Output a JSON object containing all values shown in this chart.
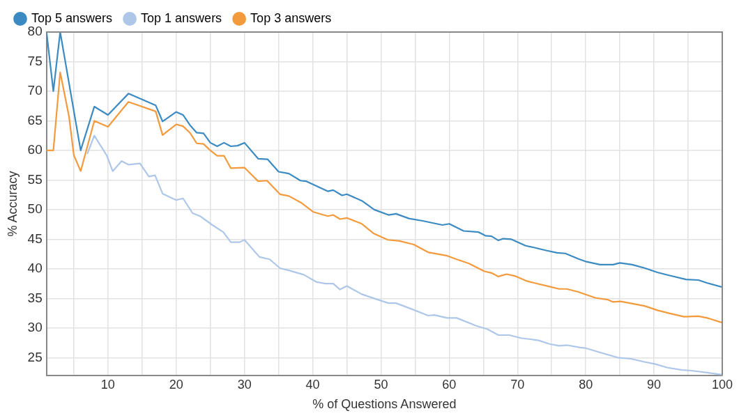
{
  "chart_data": {
    "type": "line",
    "xlabel": "% of Questions Answered",
    "ylabel": "% Accuracy",
    "xlim": [
      1,
      100
    ],
    "ylim": [
      22,
      80
    ],
    "xticks": [
      {
        "value": 5,
        "label": null
      },
      10,
      {
        "value": 15,
        "label": null
      },
      20,
      {
        "value": 25,
        "label": null
      },
      30,
      {
        "value": 35,
        "label": null
      },
      40,
      {
        "value": 45,
        "label": null
      },
      50,
      {
        "value": 55,
        "label": null
      },
      60,
      {
        "value": 65,
        "label": null
      },
      70,
      {
        "value": 75,
        "label": null
      },
      80,
      {
        "value": 85,
        "label": null
      },
      90,
      {
        "value": 95,
        "label": null
      },
      100
    ],
    "yticks": [
      25,
      30,
      35,
      40,
      45,
      50,
      55,
      60,
      65,
      70,
      75,
      80
    ],
    "grid": true,
    "legend": "top left",
    "marker": "none",
    "line_style": "solid",
    "series": [
      {
        "name": "Top 5 answers",
        "color": "#3b8bc2",
        "x": [
          1,
          2,
          3,
          6,
          8,
          10,
          13,
          17,
          18,
          20,
          21,
          22,
          23,
          24,
          25,
          26,
          27,
          28,
          29,
          30,
          32,
          33.4,
          35,
          36.5,
          38.2,
          39,
          42.2,
          43,
          44.3,
          45,
          47.2,
          49,
          51.1,
          52.2,
          54.1,
          56.1,
          59,
          60,
          62.1,
          64.3,
          65.3,
          66.2,
          67.2,
          67.9,
          69.1,
          71.2,
          72.4,
          74.2,
          75.8,
          77,
          78.9,
          80.1,
          82.1,
          84,
          85,
          86.8,
          88.7,
          90.5,
          92.2,
          94.7,
          96.5,
          97.8,
          100
        ],
        "values": [
          80,
          70,
          80,
          60,
          67.4,
          66,
          69.6,
          67.6,
          64.9,
          66.5,
          66,
          64.3,
          63,
          62.9,
          61.3,
          60.7,
          61.3,
          60.7,
          60.8,
          61.3,
          58.6,
          58.5,
          56.4,
          56.1,
          54.9,
          54.8,
          53.1,
          53.3,
          52.4,
          52.6,
          51.5,
          50,
          49.1,
          49.3,
          48.5,
          48.1,
          47.4,
          47.6,
          46.4,
          46.2,
          45.6,
          45.5,
          44.8,
          45.1,
          45,
          43.9,
          43.6,
          43.1,
          42.7,
          42.6,
          41.7,
          41.2,
          40.7,
          40.7,
          41,
          40.7,
          40.1,
          39.4,
          38.9,
          38.2,
          38.1,
          37.6,
          36.9
        ]
      },
      {
        "name": "Top 1 answers",
        "color": "#aec7e8",
        "x": [
          7,
          8,
          9.8,
          10.7,
          12,
          13,
          14.7,
          16,
          16.9,
          18,
          20,
          21,
          22.4,
          23.5,
          25.3,
          26.9,
          28,
          29.3,
          30,
          32.2,
          33.7,
          35.2,
          36.6,
          38.7,
          40.5,
          41.9,
          43,
          44,
          45,
          47.2,
          49,
          51.1,
          52.2,
          54.5,
          56.9,
          57.8,
          59.7,
          61.1,
          63.9,
          65.6,
          67.2,
          68.8,
          70.5,
          71.9,
          73.1,
          74.7,
          76.1,
          77.3,
          79.2,
          80,
          82.3,
          84.7,
          86.6,
          88.5,
          90.2,
          92,
          94.1,
          95.5,
          97.6,
          100
        ],
        "values": [
          59.5,
          62.5,
          59.2,
          56.5,
          58.2,
          57.6,
          57.8,
          55.6,
          55.8,
          52.7,
          51.6,
          51.9,
          49.4,
          48.9,
          47.4,
          46.2,
          44.5,
          44.5,
          44.9,
          42,
          41.6,
          40.1,
          39.7,
          39,
          37.8,
          37.5,
          37.5,
          36.5,
          37.1,
          35.7,
          35,
          34.2,
          34.2,
          33.2,
          32.1,
          32.2,
          31.7,
          31.7,
          30.4,
          29.8,
          28.8,
          28.8,
          28.3,
          28.1,
          27.9,
          27.3,
          27,
          27.1,
          26.7,
          26.6,
          25.8,
          25,
          24.8,
          24.3,
          23.9,
          23.3,
          22.9,
          22.8,
          22.5,
          22.1
        ]
      },
      {
        "name": "Top 3 answers",
        "color": "#f39a3c",
        "x": [
          1,
          2,
          3,
          4.3,
          5,
          6,
          8,
          10,
          13,
          17,
          18,
          20,
          21,
          22,
          23,
          24,
          25,
          26,
          27,
          28,
          30,
          32,
          33.3,
          35.2,
          36.5,
          38.4,
          40.1,
          42.2,
          43,
          44,
          45,
          47.2,
          48.9,
          51,
          52.7,
          54.8,
          56.9,
          59.7,
          61.1,
          62.9,
          65.1,
          66.2,
          67.2,
          68.4,
          69.6,
          71.2,
          72.5,
          74.7,
          76.1,
          77.2,
          78.9,
          81.4,
          83.2,
          84,
          85.1,
          87.4,
          88.7,
          90.5,
          92.2,
          94.4,
          96.5,
          97.8,
          100
        ],
        "values": [
          60,
          60,
          73.2,
          65.7,
          59.2,
          56.5,
          65,
          64,
          68.2,
          66.6,
          62.6,
          64.4,
          64.1,
          63,
          61.2,
          61.1,
          60,
          59.1,
          59.1,
          57,
          57.1,
          54.8,
          54.9,
          52.6,
          52.3,
          51.1,
          49.6,
          48.9,
          49.1,
          48.4,
          48.6,
          47.6,
          46,
          44.9,
          44.7,
          44.1,
          42.8,
          42.2,
          41.6,
          40.9,
          39.6,
          39.3,
          38.7,
          39.1,
          38.8,
          38,
          37.6,
          37,
          36.6,
          36.6,
          36.1,
          35.1,
          34.8,
          34.4,
          34.5,
          34,
          33.7,
          33,
          32.5,
          31.9,
          32,
          31.7,
          30.9
        ]
      }
    ]
  }
}
